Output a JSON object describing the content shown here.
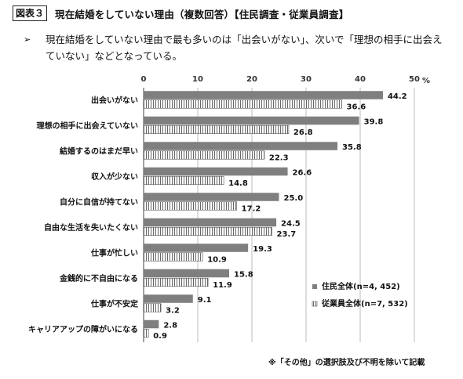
{
  "header": {
    "figure_label": "図表３",
    "title": "現在結婚をしていない理由（複数回答）【住民調査・従業員調査】"
  },
  "summary": {
    "bullet_icon": "arrow-bullet-icon",
    "text": "現在結婚をしていない理由で最も多いのは「出会いがない」、次いで「理想の相手に出会えていない」などとなっている。"
  },
  "footnote": "※「その他」の選択肢及び不明を除いて記載",
  "colors": {
    "series1": "#7f7f7f",
    "series2_stripe": "#666666"
  },
  "chart_data": {
    "type": "bar",
    "orientation": "horizontal",
    "categories": [
      "出会いがない",
      "理想の相手に出会えていない",
      "結婚するのはまだ早い",
      "収入が少ない",
      "自分に自信が持てない",
      "自由な生活を失いたくない",
      "仕事が忙しい",
      "金銭的に不自由になる",
      "仕事が不安定",
      "キャリアアップの障がいになる"
    ],
    "series": [
      {
        "name": "住民全体(n=4, 452)",
        "values": [
          44.2,
          39.8,
          35.8,
          26.6,
          25.0,
          24.5,
          19.3,
          15.8,
          9.1,
          2.8
        ]
      },
      {
        "name": "従業員全体(n=7, 532)",
        "values": [
          36.6,
          26.8,
          22.3,
          14.8,
          17.2,
          23.7,
          10.9,
          11.9,
          3.2,
          0.9
        ]
      }
    ],
    "xlim": [
      0,
      50
    ],
    "xticks": [
      "0",
      "10",
      "20",
      "30",
      "40",
      "50"
    ],
    "unit": "%",
    "grid": true,
    "legend_position": "right"
  }
}
